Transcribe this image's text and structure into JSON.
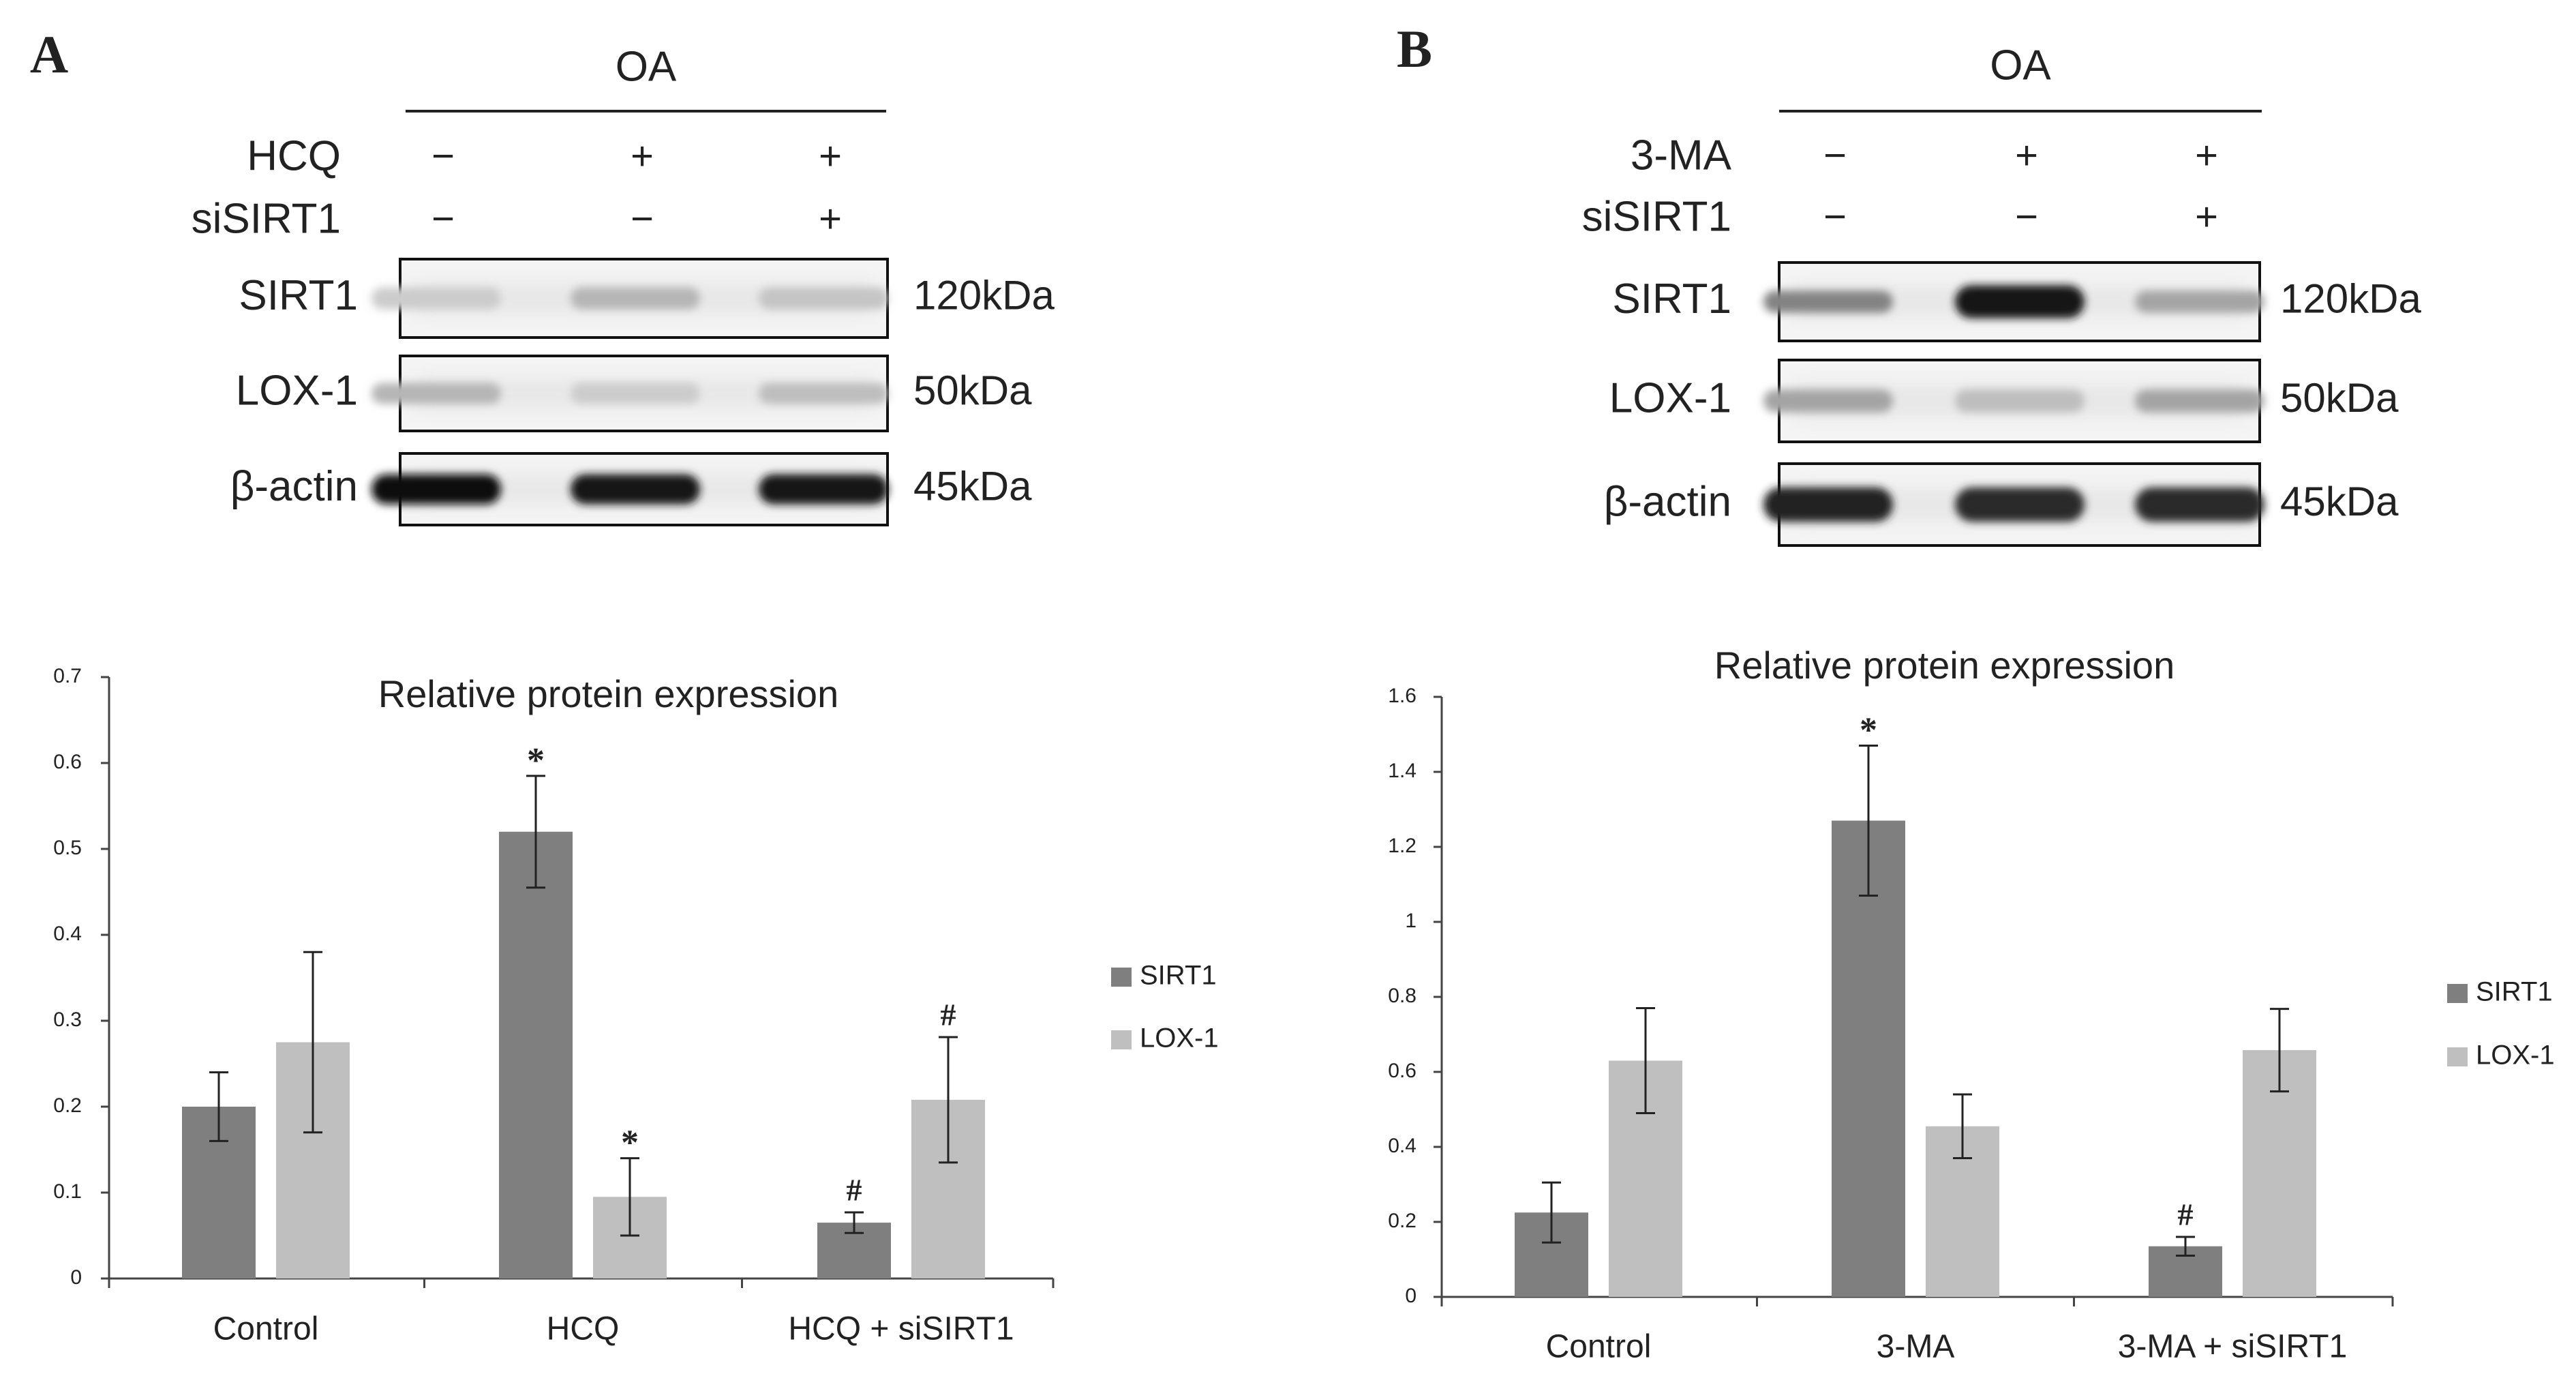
{
  "panels": [
    {
      "letter": "A",
      "blot": {
        "group": "OA",
        "conditions": [
          {
            "label": "HCQ",
            "signs": [
              "−",
              "+",
              "+"
            ]
          },
          {
            "label": "siSIRT1",
            "signs": [
              "−",
              "−",
              "+"
            ]
          }
        ],
        "rows": [
          {
            "label": "SIRT1",
            "size": "120kDa",
            "band_intensity": [
              0.12,
              0.22,
              0.15
            ]
          },
          {
            "label": "LOX-1",
            "size": "50kDa",
            "band_intensity": [
              0.22,
              0.12,
              0.18
            ]
          },
          {
            "label": "β-actin",
            "size": "45kDa",
            "band_intensity": [
              1.0,
              0.95,
              0.95
            ]
          }
        ]
      }
    },
    {
      "letter": "B",
      "blot": {
        "group": "OA",
        "conditions": [
          {
            "label": "3-MA",
            "signs": [
              "−",
              "+",
              "+"
            ]
          },
          {
            "label": "siSIRT1",
            "signs": [
              "−",
              "−",
              "+"
            ]
          }
        ],
        "rows": [
          {
            "label": "SIRT1",
            "size": "120kDa",
            "band_intensity": [
              0.45,
              0.95,
              0.3
            ]
          },
          {
            "label": "LOX-1",
            "size": "50kDa",
            "band_intensity": [
              0.3,
              0.18,
              0.3
            ]
          },
          {
            "label": "β-actin",
            "size": "45kDa",
            "band_intensity": [
              0.9,
              0.85,
              0.85
            ]
          }
        ]
      }
    }
  ],
  "chart_data": [
    {
      "type": "bar",
      "title": "Relative protein expression",
      "categories": [
        "Control",
        "HCQ",
        "HCQ + siSIRT1"
      ],
      "ylim": [
        0,
        0.7
      ],
      "yticks": [
        0,
        0.1,
        0.2,
        0.3,
        0.4,
        0.5,
        0.6,
        0.7
      ],
      "ytick_labels": [
        "0",
        "0.1",
        "0.2",
        "0.3",
        "0.4",
        "0.5",
        "0.6",
        "0.7"
      ],
      "legend_position": "right",
      "series": [
        {
          "name": "SIRT1",
          "color": "#7f7f7f",
          "values": [
            0.2,
            0.52,
            0.065
          ],
          "errors": [
            0.04,
            0.065,
            0.012
          ],
          "annotations": [
            "",
            "*",
            "#"
          ]
        },
        {
          "name": "LOX-1",
          "color": "#bfbfbf",
          "values": [
            0.275,
            0.095,
            0.208
          ],
          "errors": [
            0.105,
            0.045,
            0.073
          ],
          "annotations": [
            "",
            "*",
            "#"
          ]
        }
      ]
    },
    {
      "type": "bar",
      "title": "Relative protein expression",
      "categories": [
        "Control",
        "3-MA",
        "3-MA + siSIRT1"
      ],
      "ylim": [
        0,
        1.6
      ],
      "yticks": [
        0,
        0.2,
        0.4,
        0.6,
        0.8,
        1,
        1.2,
        1.4,
        1.6
      ],
      "ytick_labels": [
        "0",
        "0.2",
        "0.4",
        "0.6",
        "0.8",
        "1",
        "1.2",
        "1.4",
        "1.6"
      ],
      "legend_position": "right",
      "series": [
        {
          "name": "SIRT1",
          "color": "#7f7f7f",
          "values": [
            0.225,
            1.27,
            0.135
          ],
          "errors": [
            0.08,
            0.2,
            0.025
          ],
          "annotations": [
            "",
            "*",
            "#"
          ]
        },
        {
          "name": "LOX-1",
          "color": "#bfbfbf",
          "values": [
            0.63,
            0.455,
            0.658
          ],
          "errors": [
            0.14,
            0.085,
            0.11
          ],
          "annotations": [
            "",
            "",
            ""
          ]
        }
      ]
    }
  ]
}
